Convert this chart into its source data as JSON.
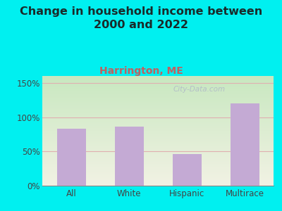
{
  "title": "Change in household income between\n2000 and 2022",
  "subtitle": "Harrington, ME",
  "categories": [
    "All",
    "White",
    "Hispanic",
    "Multirace"
  ],
  "values": [
    83,
    86,
    46,
    120
  ],
  "bar_color": "#c4aad4",
  "title_fontsize": 11.5,
  "title_color": "#1a2a2a",
  "subtitle_fontsize": 10,
  "subtitle_color": "#c06060",
  "background_outer": "#00f0f0",
  "ylim": [
    0,
    160
  ],
  "yticks": [
    0,
    50,
    100,
    150
  ],
  "ytick_labels": [
    "0%",
    "50%",
    "100%",
    "150%"
  ],
  "grid_color": "#e0b0b0",
  "tick_color": "#444444",
  "watermark": "City-Data.com",
  "grad_top_left": "#c8e8c0",
  "grad_bottom_right": "#f0f0e0"
}
